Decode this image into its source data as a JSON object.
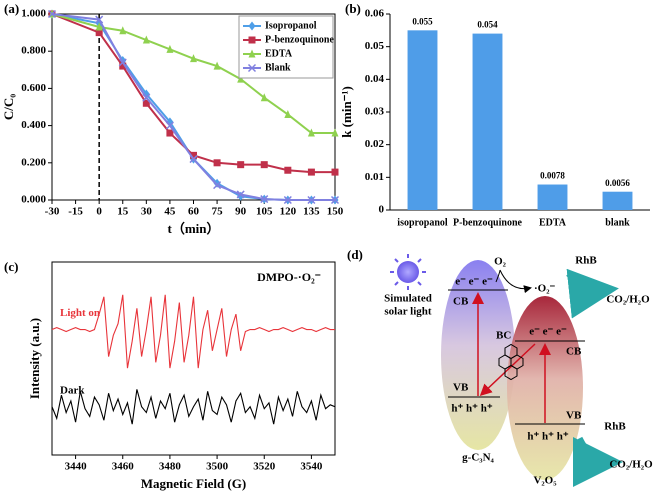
{
  "chart_data": [
    {
      "type": "line",
      "panel": "(a)",
      "x_label": "t（min）",
      "y_label": "C/C₀",
      "frame": true,
      "legend": "upper right",
      "vline": 0,
      "x": [
        -30,
        0,
        15,
        30,
        45,
        60,
        75,
        90,
        105,
        120,
        135,
        150
      ],
      "xlim": [
        -30,
        150
      ],
      "xticks": [
        -30,
        -15,
        0,
        15,
        30,
        45,
        60,
        75,
        90,
        105,
        120,
        135,
        150
      ],
      "ylim": [
        0,
        1
      ],
      "yticks": [
        {
          "value": 0,
          "label": "0.000"
        },
        {
          "value": 0.2,
          "label": "0.200"
        },
        {
          "value": 0.4,
          "label": "0.400"
        },
        {
          "value": 0.6,
          "label": "0.600"
        },
        {
          "value": 0.8,
          "label": "0.800"
        },
        {
          "value": 1,
          "label": "1.000"
        }
      ],
      "series": [
        {
          "name": "Isopropanol",
          "color": "#4f9fe8",
          "marker": "diamond",
          "values": [
            1.0,
            0.95,
            0.75,
            0.57,
            0.42,
            0.22,
            0.09,
            0.02,
            0.005,
            0.0,
            0.0,
            0.0
          ]
        },
        {
          "name": "P-benzoquinone",
          "color": "#c0304a",
          "marker": "square",
          "values": [
            1.0,
            0.9,
            0.72,
            0.52,
            0.36,
            0.24,
            0.2,
            0.19,
            0.19,
            0.16,
            0.15,
            0.15
          ]
        },
        {
          "name": "EDTA",
          "color": "#8fd14f",
          "marker": "triangle",
          "values": [
            1.0,
            0.93,
            0.91,
            0.86,
            0.81,
            0.76,
            0.72,
            0.65,
            0.55,
            0.46,
            0.36,
            0.36
          ]
        },
        {
          "name": "Blank",
          "color": "#8080e0",
          "marker": "x",
          "values": [
            1.0,
            0.97,
            0.74,
            0.55,
            0.4,
            0.22,
            0.08,
            0.03,
            0.005,
            0.0,
            0.0,
            0.0
          ]
        }
      ]
    },
    {
      "type": "bar",
      "panel": "(b)",
      "y_label": "k (min⁻¹)",
      "frame": false,
      "color": "#4f9de8",
      "categories": [
        "isopropanol",
        "P-benzoquinone",
        "EDTA",
        "blank"
      ],
      "values": [
        0.055,
        0.054,
        0.0078,
        0.0056
      ],
      "ylim": [
        0,
        0.06
      ],
      "yticks": [
        0,
        0.01,
        0.02,
        0.03,
        0.04,
        0.05,
        0.06
      ]
    },
    {
      "type": "line",
      "panel": "(c)",
      "x_label": "Magnetic Field (G)",
      "y_label": "Intensity (a.u.)",
      "frame": true,
      "legend": "inline",
      "annotation": "DMPO-·O₂⁻",
      "x": [
        3430,
        3432,
        3434,
        3436,
        3438,
        3440,
        3442,
        3444,
        3446,
        3448,
        3450,
        3452,
        3454,
        3456,
        3458,
        3460,
        3462,
        3464,
        3466,
        3468,
        3470,
        3472,
        3474,
        3476,
        3478,
        3480,
        3482,
        3484,
        3486,
        3488,
        3490,
        3492,
        3494,
        3496,
        3498,
        3500,
        3502,
        3504,
        3506,
        3508,
        3510,
        3512,
        3514,
        3516,
        3518,
        3520,
        3522,
        3524,
        3526,
        3528,
        3530,
        3532,
        3534,
        3536,
        3538,
        3540,
        3542,
        3544,
        3546,
        3548,
        3550
      ],
      "xlim": [
        3430,
        3550
      ],
      "xticks": [
        3440,
        3460,
        3480,
        3500,
        3520,
        3540
      ],
      "ylim": [
        0.05,
        1.05
      ],
      "series": [
        {
          "name": "Light on",
          "color": "#e8343a",
          "values": [
            0.7,
            0.71,
            0.7,
            0.69,
            0.7,
            0.71,
            0.7,
            0.7,
            0.69,
            0.7,
            0.78,
            0.87,
            0.56,
            0.67,
            0.73,
            0.88,
            0.5,
            0.64,
            0.81,
            0.56,
            0.7,
            0.87,
            0.53,
            0.67,
            0.88,
            0.5,
            0.64,
            0.84,
            0.53,
            0.67,
            0.87,
            0.5,
            0.7,
            0.8,
            0.59,
            0.7,
            0.81,
            0.56,
            0.7,
            0.78,
            0.59,
            0.69,
            0.7,
            0.7,
            0.71,
            0.7,
            0.69,
            0.7,
            0.7,
            0.71,
            0.7,
            0.69,
            0.7,
            0.71,
            0.7,
            0.7,
            0.69,
            0.7,
            0.71,
            0.7,
            0.7
          ]
        },
        {
          "name": "Dark",
          "color": "#000000",
          "values": [
            0.3,
            0.24,
            0.36,
            0.27,
            0.33,
            0.22,
            0.38,
            0.29,
            0.25,
            0.35,
            0.31,
            0.23,
            0.37,
            0.28,
            0.34,
            0.26,
            0.32,
            0.21,
            0.39,
            0.3,
            0.27,
            0.35,
            0.24,
            0.33,
            0.29,
            0.37,
            0.22,
            0.31,
            0.36,
            0.25,
            0.3,
            0.34,
            0.23,
            0.38,
            0.28,
            0.26,
            0.35,
            0.31,
            0.22,
            0.33,
            0.37,
            0.27,
            0.3,
            0.24,
            0.36,
            0.29,
            0.32,
            0.21,
            0.35,
            0.28,
            0.34,
            0.25,
            0.38,
            0.3,
            0.27,
            0.33,
            0.23,
            0.36,
            0.29,
            0.31,
            0.3
          ]
        }
      ]
    }
  ],
  "diagram": {
    "panel": "(d)",
    "light_source": [
      "Simulated",
      "solar light"
    ],
    "oxygen": "O₂",
    "superoxide": "·O₂⁻",
    "rhb_top": "RhB",
    "product_top": "CO₂/H₂O",
    "rhb_bottom": "RhB",
    "product_bottom": "CO₂/H₂O",
    "bc": "BC",
    "gcn": {
      "name": "g-C₃N₄",
      "cb": "CB",
      "vb": "VB",
      "electrons": "e⁻ e⁻ e⁻",
      "holes": "h⁺ h⁺ h⁺"
    },
    "v2o5": {
      "name": "V₂O₅",
      "cb": "CB",
      "vb": "VB",
      "electrons": "e⁻ e⁻ e⁻",
      "holes": "h⁺ h⁺ h⁺"
    }
  }
}
